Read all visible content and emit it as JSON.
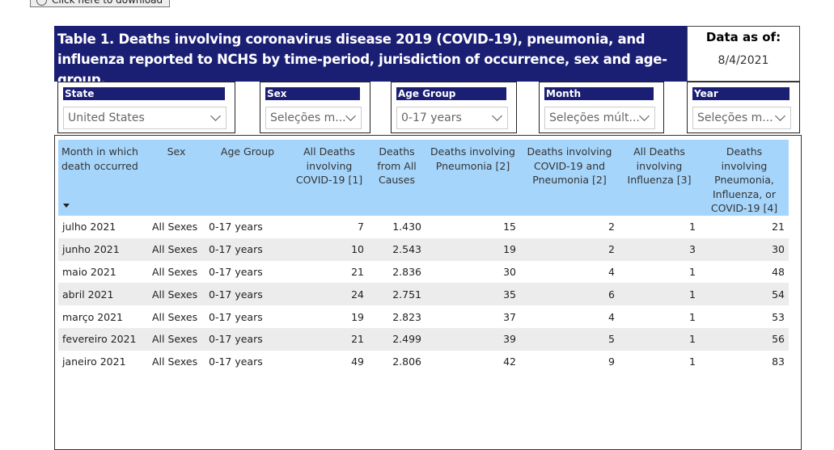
{
  "download_button": {
    "label": "Click here to download"
  },
  "header": {
    "title": "Table 1. Deaths involving coronavirus disease 2019 (COVID-19), pneumonia, and influenza reported to NCHS by time-period, jurisdiction of occurrence, sex and age-group.",
    "data_as_of_label": "Data as of:",
    "data_as_of_date": "8/4/2021"
  },
  "filters": [
    {
      "label": "State",
      "value": "United States"
    },
    {
      "label": "Sex",
      "value": "Seleções m..."
    },
    {
      "label": "Age Group",
      "value": "0-17 years"
    },
    {
      "label": "Month",
      "value": "Seleções múlt..."
    },
    {
      "label": "Year",
      "value": "Seleções m..."
    }
  ],
  "table": {
    "columns": [
      "Month in which death occurred",
      "Sex",
      "Age Group",
      "All Deaths involving COVID-19 [1]",
      "Deaths from All Causes",
      "Deaths involving Pneumonia [2]",
      "Deaths involving COVID-19 and Pneumonia [2]",
      "All Deaths involving Influenza [3]",
      "Deaths involving Pneumonia, Influenza, or COVID-19 [4]"
    ],
    "rows": [
      [
        "julho 2021",
        "All Sexes",
        "0-17 years",
        "7",
        "1.430",
        "15",
        "2",
        "1",
        "21"
      ],
      [
        "junho 2021",
        "All Sexes",
        "0-17 years",
        "10",
        "2.543",
        "19",
        "2",
        "3",
        "30"
      ],
      [
        "maio 2021",
        "All Sexes",
        "0-17 years",
        "21",
        "2.836",
        "30",
        "4",
        "1",
        "48"
      ],
      [
        "abril 2021",
        "All Sexes",
        "0-17 years",
        "24",
        "2.751",
        "35",
        "6",
        "1",
        "54"
      ],
      [
        "março 2021",
        "All Sexes",
        "0-17 years",
        "19",
        "2.823",
        "37",
        "4",
        "1",
        "53"
      ],
      [
        "fevereiro 2021",
        "All Sexes",
        "0-17 years",
        "21",
        "2.499",
        "39",
        "5",
        "1",
        "56"
      ],
      [
        "janeiro 2021",
        "All Sexes",
        "0-17 years",
        "49",
        "2.806",
        "42",
        "9",
        "1",
        "83"
      ]
    ]
  }
}
